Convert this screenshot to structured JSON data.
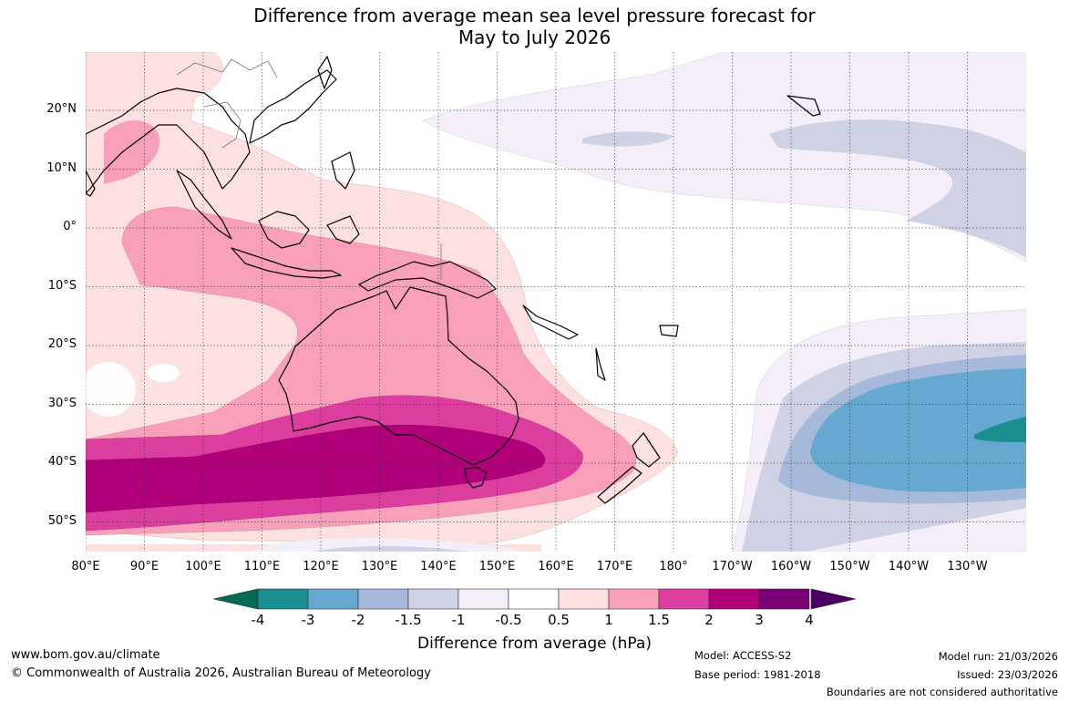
{
  "title": {
    "line1": "Difference from average mean sea level pressure forecast for",
    "line2": "May to July 2026"
  },
  "map": {
    "lat_labels": [
      "20°N",
      "10°N",
      "0°",
      "10°S",
      "20°S",
      "30°S",
      "40°S",
      "50°S"
    ],
    "lon_labels": [
      "80°E",
      "90°E",
      "100°E",
      "110°E",
      "120°E",
      "130°E",
      "140°E",
      "150°E",
      "160°E",
      "170°E",
      "180°",
      "170°W",
      "160°W",
      "150°W",
      "140°W",
      "130°W"
    ]
  },
  "colorbar": {
    "ticks": [
      "-4",
      "-3",
      "-2",
      "-1.5",
      "-1",
      "-0.5",
      "0.5",
      "1",
      "1.5",
      "2",
      "3",
      "4"
    ],
    "colors": [
      "#1a8f8f",
      "#67a8d0",
      "#a6b9da",
      "#cfd1e5",
      "#f3eef7",
      "#ffffff",
      "#fde0e0",
      "#f8a0b9",
      "#dc3ea0",
      "#b0007a",
      "#7a0075"
    ],
    "low_end_color": "#006a55",
    "high_end_color": "#4a0060",
    "label": "Difference from average (hPa)"
  },
  "footer": {
    "website": "www.bom.gov.au/climate",
    "copyright": "© Commonwealth of Australia 2026, Australian Bureau of Meteorology",
    "model": "Model: ACCESS-S2",
    "base_period": "Base period: 1981-2018",
    "model_run": "Model run: 21/03/2026",
    "issued": "Issued: 23/03/2026",
    "disclaimer": "Boundaries are not considered authoritative"
  }
}
